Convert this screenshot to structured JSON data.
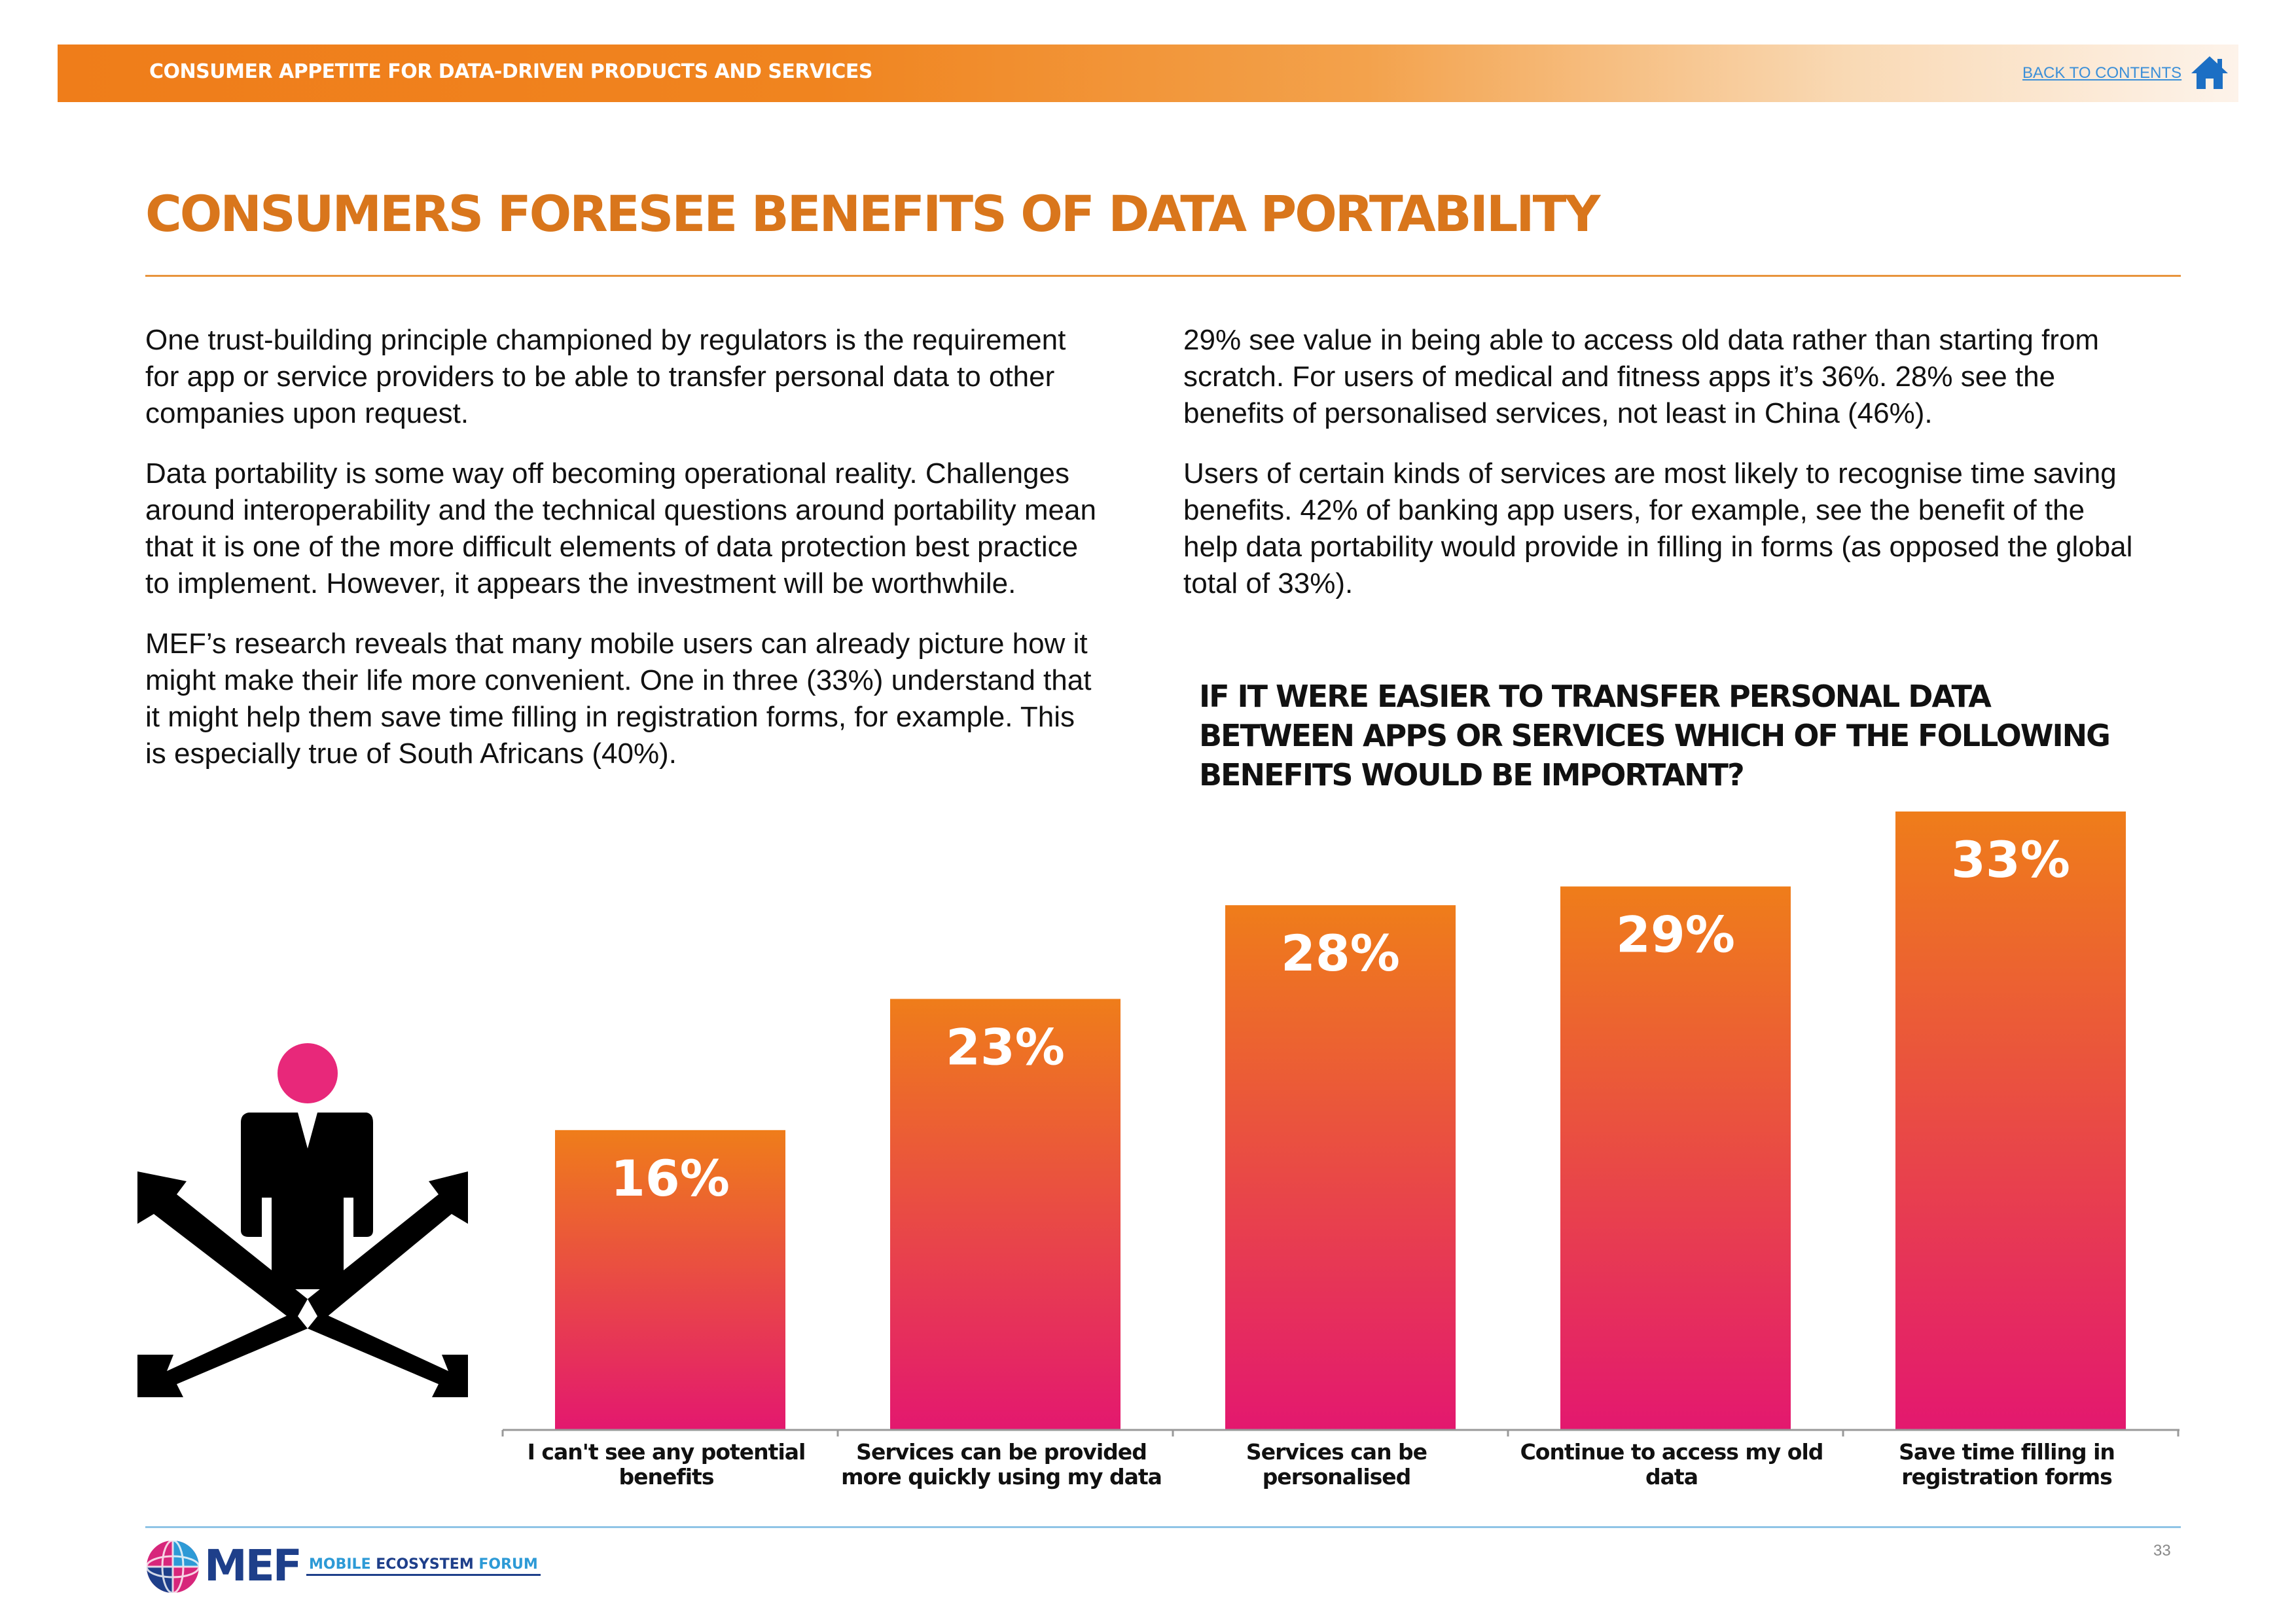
{
  "header": {
    "section_title": "CONSUMER APPETITE FOR DATA-DRIVEN PRODUCTS AND SERVICES",
    "back_link": "BACK TO CONTENTS",
    "home_icon": "home-icon"
  },
  "page": {
    "title": "CONSUMERS FORESEE BENEFITS OF DATA PORTABILITY",
    "number": "33"
  },
  "body": {
    "left_paragraphs": [
      "One trust-building principle championed by regulators is the requirement for app or service providers to  be able to transfer personal data to other companies upon request.",
      "Data portability is some way off becoming operational reality. Challenges around interoperability and the technical questions around portability mean that it is one of the more difficult elements of data protection best practice to implement. However, it appears the investment will be worthwhile.",
      "MEF’s research reveals that many mobile users can already picture how it might make their life more convenient. One in three (33%) understand that it might help them save time filling in registration forms, for example. This is especially true of South Africans (40%)."
    ],
    "right_paragraphs": [
      "29% see value in being able to access old data rather than starting from scratch. For users of medical and fitness apps it’s 36%. 28% see the benefits of personalised services, not least in China (46%).",
      "Users of certain kinds of services are most likely to recognise time saving benefits. 42% of banking app users, for example, see the benefit of the help data portability would provide in filling in forms (as opposed the global total of 33%)."
    ]
  },
  "chart_data": {
    "type": "bar",
    "title": "IF IT WERE EASIER TO TRANSFER PERSONAL DATA BETWEEN APPS OR SERVICES WHICH OF THE FOLLOWING BENEFITS WOULD BE IMPORTANT?",
    "categories": [
      "I can't see any potential benefits",
      "Services can be provided more quickly using my data",
      "Services can be personalised",
      "Continue to access my old data",
      "Save time filling in registration forms"
    ],
    "values": [
      16,
      23,
      28,
      29,
      33
    ],
    "value_labels": [
      "16%",
      "23%",
      "28%",
      "29%",
      "33%"
    ],
    "unit": "%",
    "xlabel": "",
    "ylabel": "",
    "ylim": [
      0,
      33
    ],
    "grid": false,
    "legend": "none",
    "bar_gradient": [
      "#ef7d1a",
      "#e3186f"
    ]
  },
  "illustration": {
    "icon": "person-crossroads-icon",
    "head_color": "#e8287a"
  },
  "footer": {
    "logo_text": "MEF",
    "logo_subtitle_highlight": "MOBILE",
    "logo_subtitle_rest": "ECOSYSTEM",
    "logo_subtitle_end": "FORUM"
  },
  "colors": {
    "accent_orange": "#d9761c",
    "link_blue": "#3b8fd8",
    "brand_navy": "#1e3f8a"
  }
}
